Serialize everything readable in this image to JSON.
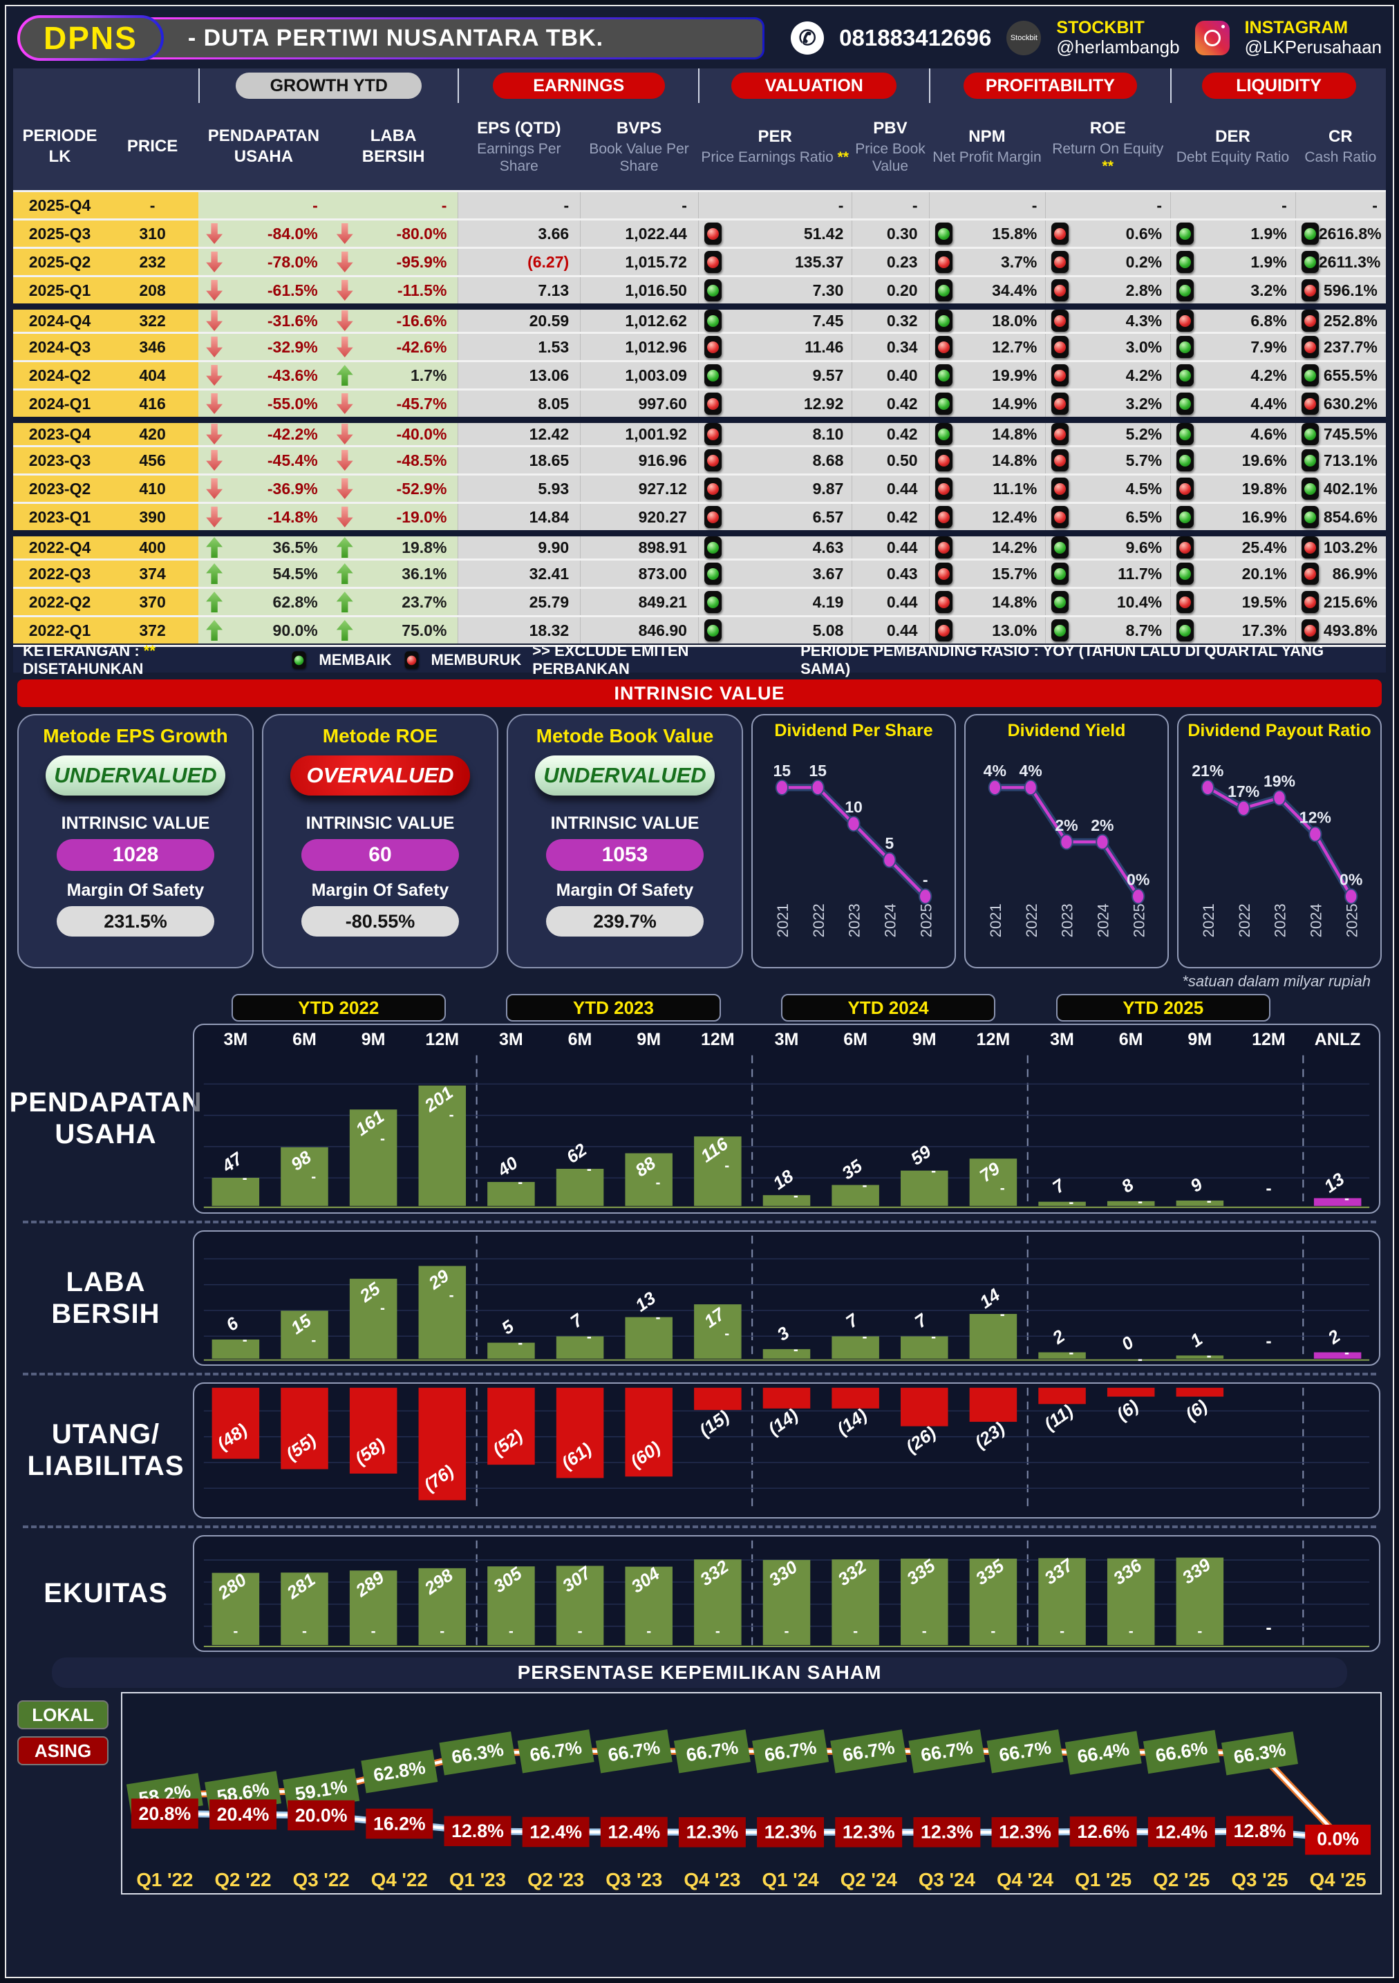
{
  "header": {
    "ticker": "DPNS",
    "company": "-  DUTA PERTIWI NUSANTARA TBK.",
    "phone": "081883412696",
    "stockbit_logo": "Stockbit",
    "stockbit_label": "STOCKBIT",
    "stockbit_handle": "@herlambangb",
    "instagram_label": "INSTAGRAM",
    "instagram_handle": "@LKPerusahaan"
  },
  "table": {
    "groups": [
      {
        "label": "GROWTH YTD",
        "style": "gray"
      },
      {
        "label": "EARNINGS",
        "style": "red"
      },
      {
        "label": "VALUATION",
        "style": "red"
      },
      {
        "label": "PROFITABILITY",
        "style": "red"
      },
      {
        "label": "LIQUIDITY",
        "style": "red"
      }
    ],
    "columns": [
      {
        "main": "PERIODE\nLK"
      },
      {
        "main": "PRICE"
      },
      {
        "main": "PENDAPATAN\nUSAHA"
      },
      {
        "main": "LABA\nBERSIH"
      },
      {
        "main": "EPS (QTD)",
        "sub": "Earnings Per Share"
      },
      {
        "main": "BVPS",
        "sub": "Book Value Per Share"
      },
      {
        "main": "PER",
        "sub": "Price Earnings Ratio",
        "star": true
      },
      {
        "main": "PBV",
        "sub": "Price Book Value"
      },
      {
        "main": "NPM",
        "sub": "Net Profit Margin"
      },
      {
        "main": "ROE",
        "sub": "Return On Equity",
        "star": true
      },
      {
        "main": "DER",
        "sub": "Debt Equity Ratio"
      },
      {
        "main": "CR",
        "sub": "Cash Ratio"
      }
    ],
    "rows": [
      {
        "period": "2025-Q4",
        "price": "-",
        "pu_dir": null,
        "pu": "-",
        "lb_dir": null,
        "lb": "-",
        "eps": "-",
        "bvps": "-",
        "per_l": null,
        "per": "-",
        "pbv": "-",
        "npm_l": null,
        "npm": "-",
        "roe_l": null,
        "roe": "-",
        "der_l": null,
        "der": "-",
        "cr_l": null,
        "cr": "-"
      },
      {
        "period": "2025-Q3",
        "price": "310",
        "pu_dir": "down",
        "pu": "-84.0%",
        "lb_dir": "down",
        "lb": "-80.0%",
        "eps": "3.66",
        "bvps": "1,022.44",
        "per_l": "r",
        "per": "51.42",
        "pbv": "0.30",
        "npm_l": "g",
        "npm": "15.8%",
        "roe_l": "r",
        "roe": "0.6%",
        "der_l": "g",
        "der": "1.9%",
        "cr_l": "g",
        "cr": "2616.8%"
      },
      {
        "period": "2025-Q2",
        "price": "232",
        "pu_dir": "down",
        "pu": "-78.0%",
        "lb_dir": "down",
        "lb": "-95.9%",
        "eps": "(6.27)",
        "eps_neg": true,
        "bvps": "1,015.72",
        "per_l": "r",
        "per": "135.37",
        "pbv": "0.23",
        "npm_l": "r",
        "npm": "3.7%",
        "roe_l": "r",
        "roe": "0.2%",
        "der_l": "g",
        "der": "1.9%",
        "cr_l": "g",
        "cr": "2611.3%"
      },
      {
        "period": "2025-Q1",
        "price": "208",
        "pu_dir": "down",
        "pu": "-61.5%",
        "lb_dir": "down",
        "lb": "-11.5%",
        "eps": "7.13",
        "bvps": "1,016.50",
        "per_l": "g",
        "per": "7.30",
        "pbv": "0.20",
        "npm_l": "g",
        "npm": "34.4%",
        "roe_l": "r",
        "roe": "2.8%",
        "der_l": "g",
        "der": "3.2%",
        "cr_l": "r",
        "cr": "596.1%"
      },
      {
        "period": "2024-Q4",
        "price": "322",
        "ytop": true,
        "pu_dir": "down",
        "pu": "-31.6%",
        "lb_dir": "down",
        "lb": "-16.6%",
        "eps": "20.59",
        "bvps": "1,012.62",
        "per_l": "g",
        "per": "7.45",
        "pbv": "0.32",
        "npm_l": "g",
        "npm": "18.0%",
        "roe_l": "r",
        "roe": "4.3%",
        "der_l": "r",
        "der": "6.8%",
        "cr_l": "r",
        "cr": "252.8%"
      },
      {
        "period": "2024-Q3",
        "price": "346",
        "pu_dir": "down",
        "pu": "-32.9%",
        "lb_dir": "down",
        "lb": "-42.6%",
        "eps": "1.53",
        "bvps": "1,012.96",
        "per_l": "r",
        "per": "11.46",
        "pbv": "0.34",
        "npm_l": "r",
        "npm": "12.7%",
        "roe_l": "r",
        "roe": "3.0%",
        "der_l": "g",
        "der": "7.9%",
        "cr_l": "r",
        "cr": "237.7%"
      },
      {
        "period": "2024-Q2",
        "price": "404",
        "pu_dir": "down",
        "pu": "-43.6%",
        "lb_dir": "up",
        "lb": "1.7%",
        "eps": "13.06",
        "bvps": "1,003.09",
        "per_l": "g",
        "per": "9.57",
        "pbv": "0.40",
        "npm_l": "g",
        "npm": "19.9%",
        "roe_l": "r",
        "roe": "4.2%",
        "der_l": "g",
        "der": "4.2%",
        "cr_l": "g",
        "cr": "655.5%"
      },
      {
        "period": "2024-Q1",
        "price": "416",
        "pu_dir": "down",
        "pu": "-55.0%",
        "lb_dir": "down",
        "lb": "-45.7%",
        "eps": "8.05",
        "bvps": "997.60",
        "per_l": "r",
        "per": "12.92",
        "pbv": "0.42",
        "npm_l": "g",
        "npm": "14.9%",
        "roe_l": "r",
        "roe": "3.2%",
        "der_l": "g",
        "der": "4.4%",
        "cr_l": "r",
        "cr": "630.2%"
      },
      {
        "period": "2023-Q4",
        "price": "420",
        "ytop": true,
        "pu_dir": "down",
        "pu": "-42.2%",
        "lb_dir": "down",
        "lb": "-40.0%",
        "eps": "12.42",
        "bvps": "1,001.92",
        "per_l": "r",
        "per": "8.10",
        "pbv": "0.42",
        "npm_l": "g",
        "npm": "14.8%",
        "roe_l": "r",
        "roe": "5.2%",
        "der_l": "g",
        "der": "4.6%",
        "cr_l": "g",
        "cr": "745.5%"
      },
      {
        "period": "2023-Q3",
        "price": "456",
        "pu_dir": "down",
        "pu": "-45.4%",
        "lb_dir": "down",
        "lb": "-48.5%",
        "eps": "18.65",
        "bvps": "916.96",
        "per_l": "r",
        "per": "8.68",
        "pbv": "0.50",
        "npm_l": "r",
        "npm": "14.8%",
        "roe_l": "r",
        "roe": "5.7%",
        "der_l": "g",
        "der": "19.6%",
        "cr_l": "g",
        "cr": "713.1%"
      },
      {
        "period": "2023-Q2",
        "price": "410",
        "pu_dir": "down",
        "pu": "-36.9%",
        "lb_dir": "down",
        "lb": "-52.9%",
        "eps": "5.93",
        "bvps": "927.12",
        "per_l": "r",
        "per": "9.87",
        "pbv": "0.44",
        "npm_l": "r",
        "npm": "11.1%",
        "roe_l": "r",
        "roe": "4.5%",
        "der_l": "r",
        "der": "19.8%",
        "cr_l": "g",
        "cr": "402.1%"
      },
      {
        "period": "2023-Q1",
        "price": "390",
        "pu_dir": "down",
        "pu": "-14.8%",
        "lb_dir": "down",
        "lb": "-19.0%",
        "eps": "14.84",
        "bvps": "920.27",
        "per_l": "r",
        "per": "6.57",
        "pbv": "0.42",
        "npm_l": "r",
        "npm": "12.4%",
        "roe_l": "r",
        "roe": "6.5%",
        "der_l": "g",
        "der": "16.9%",
        "cr_l": "g",
        "cr": "854.6%"
      },
      {
        "period": "2022-Q4",
        "price": "400",
        "ytop": true,
        "pu_dir": "up",
        "pu": "36.5%",
        "lb_dir": "up",
        "lb": "19.8%",
        "eps": "9.90",
        "bvps": "898.91",
        "per_l": "g",
        "per": "4.63",
        "pbv": "0.44",
        "npm_l": "r",
        "npm": "14.2%",
        "roe_l": "g",
        "roe": "9.6%",
        "der_l": "r",
        "der": "25.4%",
        "cr_l": "r",
        "cr": "103.2%"
      },
      {
        "period": "2022-Q3",
        "price": "374",
        "pu_dir": "up",
        "pu": "54.5%",
        "lb_dir": "up",
        "lb": "36.1%",
        "eps": "32.41",
        "bvps": "873.00",
        "per_l": "g",
        "per": "3.67",
        "pbv": "0.43",
        "npm_l": "r",
        "npm": "15.7%",
        "roe_l": "g",
        "roe": "11.7%",
        "der_l": "g",
        "der": "20.1%",
        "cr_l": "r",
        "cr": "86.9%"
      },
      {
        "period": "2022-Q2",
        "price": "370",
        "pu_dir": "up",
        "pu": "62.8%",
        "lb_dir": "up",
        "lb": "23.7%",
        "eps": "25.79",
        "bvps": "849.21",
        "per_l": "g",
        "per": "4.19",
        "pbv": "0.44",
        "npm_l": "r",
        "npm": "14.8%",
        "roe_l": "g",
        "roe": "10.4%",
        "der_l": "r",
        "der": "19.5%",
        "cr_l": "r",
        "cr": "215.6%"
      },
      {
        "period": "2022-Q1",
        "price": "372",
        "pu_dir": "up",
        "pu": "90.0%",
        "lb_dir": "up",
        "lb": "75.0%",
        "eps": "18.32",
        "bvps": "846.90",
        "per_l": "g",
        "per": "5.08",
        "pbv": "0.44",
        "npm_l": "r",
        "npm": "13.0%",
        "roe_l": "g",
        "roe": "8.7%",
        "der_l": "g",
        "der": "17.3%",
        "cr_l": "r",
        "cr": "493.8%"
      }
    ],
    "legend_bar": {
      "keterangan": "KETERANGAN :",
      "star": "**",
      "disetahunkan": "DISETAHUNKAN",
      "membaik": "MEMBAIK",
      "memburuk": "MEMBURUK",
      "exclude": ">> EXCLUDE EMITEN PERBANKAN",
      "pembanding": "PERIODE PEMBANDING RASIO : YOY (TAHUN LALU DI QUARTAL YANG SAMA)"
    }
  },
  "intrinsic": {
    "banner": "INTRINSIC VALUE",
    "cards": [
      {
        "title": "Metode EPS Growth",
        "verdict": "UNDERVALUED",
        "verdict_type": "under",
        "iv_label": "INTRINSIC VALUE",
        "iv": "1028",
        "mos_label": "Margin Of Safety",
        "mos": "231.5%"
      },
      {
        "title": "Metode ROE",
        "verdict": "OVERVALUED",
        "verdict_type": "over",
        "iv_label": "INTRINSIC VALUE",
        "iv": "60",
        "mos_label": "Margin Of Safety",
        "mos": "-80.55%"
      },
      {
        "title": "Metode Book Value",
        "verdict": "UNDERVALUED",
        "verdict_type": "under",
        "iv_label": "INTRINSIC VALUE",
        "iv": "1053",
        "mos_label": "Margin Of Safety",
        "mos": "239.7%"
      }
    ]
  },
  "chart_data": {
    "dividends": [
      {
        "type": "line",
        "title": "Dividend Per Share",
        "x": [
          "2021",
          "2022",
          "2023",
          "2024",
          "2025"
        ],
        "values": [
          15,
          15,
          10,
          5,
          null
        ],
        "labels": [
          "15",
          "15",
          "10",
          "5",
          "-"
        ]
      },
      {
        "type": "line",
        "title": "Dividend Yield",
        "x": [
          "2021",
          "2022",
          "2023",
          "2024",
          "2025"
        ],
        "values": [
          4,
          4,
          2,
          2,
          0
        ],
        "labels": [
          "4%",
          "4%",
          "2%",
          "2%",
          "0%"
        ]
      },
      {
        "type": "line",
        "title": "Dividend Payout Ratio",
        "x": [
          "2021",
          "2022",
          "2023",
          "2024",
          "2025"
        ],
        "values": [
          21,
          17,
          19,
          12,
          0
        ],
        "labels": [
          "21%",
          "17%",
          "19%",
          "12%",
          "0%"
        ]
      }
    ],
    "financials": {
      "type": "bar",
      "note": "*satuan dalam milyar rupiah",
      "group_labels": [
        "YTD 2022",
        "YTD 2023",
        "YTD 2024",
        "YTD 2025"
      ],
      "period_labels": [
        "3M",
        "6M",
        "9M",
        "12M",
        "3M",
        "6M",
        "9M",
        "12M",
        "3M",
        "6M",
        "9M",
        "12M",
        "3M",
        "6M",
        "9M",
        "12M",
        "ANLZ"
      ],
      "rows": [
        {
          "label": "PENDAPATAN USAHA",
          "lines": [
            "PENDAPATAN",
            "USAHA"
          ],
          "color": "green",
          "direction": "up",
          "dash": "below-label",
          "values": [
            47,
            98,
            161,
            201,
            40,
            62,
            88,
            116,
            18,
            35,
            59,
            79,
            7,
            8,
            9,
            null,
            13
          ],
          "labels": [
            "47",
            "98",
            "161",
            "201",
            "40",
            "62",
            "88",
            "116",
            "18",
            "35",
            "59",
            "79",
            "7",
            "8",
            "9",
            "-",
            "13"
          ],
          "anlz_color": "magenta"
        },
        {
          "label": "LABA BERSIH",
          "lines": [
            "LABA",
            "BERSIH"
          ],
          "color": "green",
          "direction": "up",
          "dash": "below-label",
          "values": [
            6,
            15,
            25,
            29,
            5,
            7,
            13,
            17,
            3,
            7,
            7,
            14,
            2,
            0,
            1,
            null,
            2
          ],
          "labels": [
            "6",
            "15",
            "25",
            "29",
            "5",
            "7",
            "13",
            "17",
            "3",
            "7",
            "7",
            "14",
            "2",
            "0",
            "1",
            "-",
            "2"
          ],
          "anlz_color": "magenta"
        },
        {
          "label": "UTANG/ LIABILITAS",
          "lines": [
            "UTANG/",
            "LIABILITAS"
          ],
          "color": "red",
          "direction": "down",
          "dash": null,
          "values": [
            48,
            55,
            58,
            76,
            52,
            61,
            60,
            15,
            14,
            14,
            26,
            23,
            11,
            6,
            6,
            null,
            null
          ],
          "labels": [
            "(48)",
            "(55)",
            "(58)",
            "(76)",
            "(52)",
            "(61)",
            "(60)",
            "(15)",
            "(14)",
            "(14)",
            "(26)",
            "(23)",
            "(11)",
            "(6)",
            "(6)",
            null,
            null
          ]
        },
        {
          "label": "EKUITAS",
          "lines": [
            "EKUITAS"
          ],
          "color": "green",
          "direction": "up",
          "dash": "bar-bottom",
          "values": [
            280,
            281,
            289,
            298,
            305,
            307,
            304,
            332,
            330,
            332,
            335,
            335,
            337,
            336,
            339,
            null,
            null
          ],
          "labels": [
            "280",
            "281",
            "289",
            "298",
            "305",
            "307",
            "304",
            "332",
            "330",
            "332",
            "335",
            "335",
            "337",
            "336",
            "339",
            "-",
            null
          ]
        }
      ]
    },
    "ownership": {
      "type": "line",
      "title": "PERSENTASE KEPEMILIKAN SAHAM",
      "legend": [
        {
          "label": "LOKAL",
          "color": "#4e7a2e"
        },
        {
          "label": "ASING",
          "color": "#9c0000"
        }
      ],
      "quarters": [
        "Q1 '22",
        "Q2 '22",
        "Q3 '22",
        "Q4 '22",
        "Q1 '23",
        "Q2 '23",
        "Q3 '23",
        "Q4 '23",
        "Q1 '24",
        "Q2 '24",
        "Q3 '24",
        "Q4 '24",
        "Q1 '25",
        "Q2 '25",
        "Q3 '25",
        "Q4 '25"
      ],
      "lokal": [
        58.2,
        58.6,
        59.1,
        62.8,
        66.3,
        66.7,
        66.7,
        66.7,
        66.7,
        66.7,
        66.7,
        66.7,
        66.4,
        66.6,
        66.3,
        0.0
      ],
      "asing": [
        20.8,
        20.4,
        20.0,
        16.2,
        12.8,
        12.4,
        12.4,
        12.3,
        12.3,
        12.3,
        12.3,
        12.3,
        12.6,
        12.4,
        12.8,
        0.0
      ],
      "final_label": "0.0%"
    }
  }
}
